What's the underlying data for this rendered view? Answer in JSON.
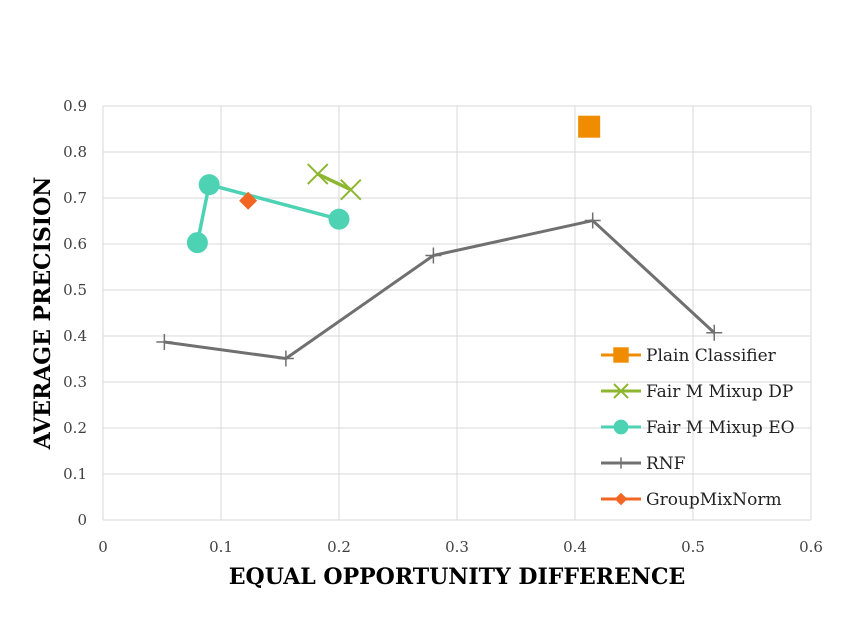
{
  "chart_data": {
    "type": "scatter",
    "title": "",
    "xlabel": "EQUAL OPPORTUNITY DIFFERENCE",
    "ylabel": "AVERAGE PRECISION",
    "xlim": [
      0,
      0.6
    ],
    "ylim": [
      0,
      0.9
    ],
    "x_ticks": [
      0,
      0.1,
      0.2,
      0.3,
      0.4,
      0.5,
      0.6
    ],
    "y_ticks": [
      0,
      0.1,
      0.2,
      0.3,
      0.4,
      0.5,
      0.6,
      0.7,
      0.8,
      0.9
    ],
    "x_tick_labels": [
      "0",
      "0.1",
      "0.2",
      "0.3",
      "0.4",
      "0.5",
      "0.6"
    ],
    "y_tick_labels": [
      "0",
      "0.1",
      "0.2",
      "0.3",
      "0.4",
      "0.5",
      "0.6",
      "0.7",
      "0.8",
      "0.9"
    ],
    "grid": true,
    "legend_position": "bottom-right",
    "series": [
      {
        "name": "Plain Classifier",
        "color": "#F08C00",
        "marker": "square",
        "line": false,
        "points": [
          [
            0.412,
            0.855
          ]
        ]
      },
      {
        "name": "Fair M Mixup DP",
        "color": "#8DB631",
        "marker": "x",
        "line": true,
        "points": [
          [
            0.182,
            0.752
          ],
          [
            0.21,
            0.718
          ]
        ]
      },
      {
        "name": "Fair M Mixup EO",
        "color": "#4DD2B4",
        "marker": "circle",
        "line": true,
        "points": [
          [
            0.08,
            0.603
          ],
          [
            0.09,
            0.729
          ],
          [
            0.2,
            0.654
          ]
        ]
      },
      {
        "name": "RNF",
        "color": "#707070",
        "marker": "plus",
        "line": true,
        "points": [
          [
            0.052,
            0.387
          ],
          [
            0.155,
            0.351
          ],
          [
            0.28,
            0.575
          ],
          [
            0.415,
            0.651
          ],
          [
            0.518,
            0.407
          ]
        ]
      },
      {
        "name": "GroupMixNorm",
        "color": "#F26522",
        "marker": "diamond",
        "line": false,
        "points": [
          [
            0.123,
            0.694
          ]
        ]
      }
    ]
  }
}
